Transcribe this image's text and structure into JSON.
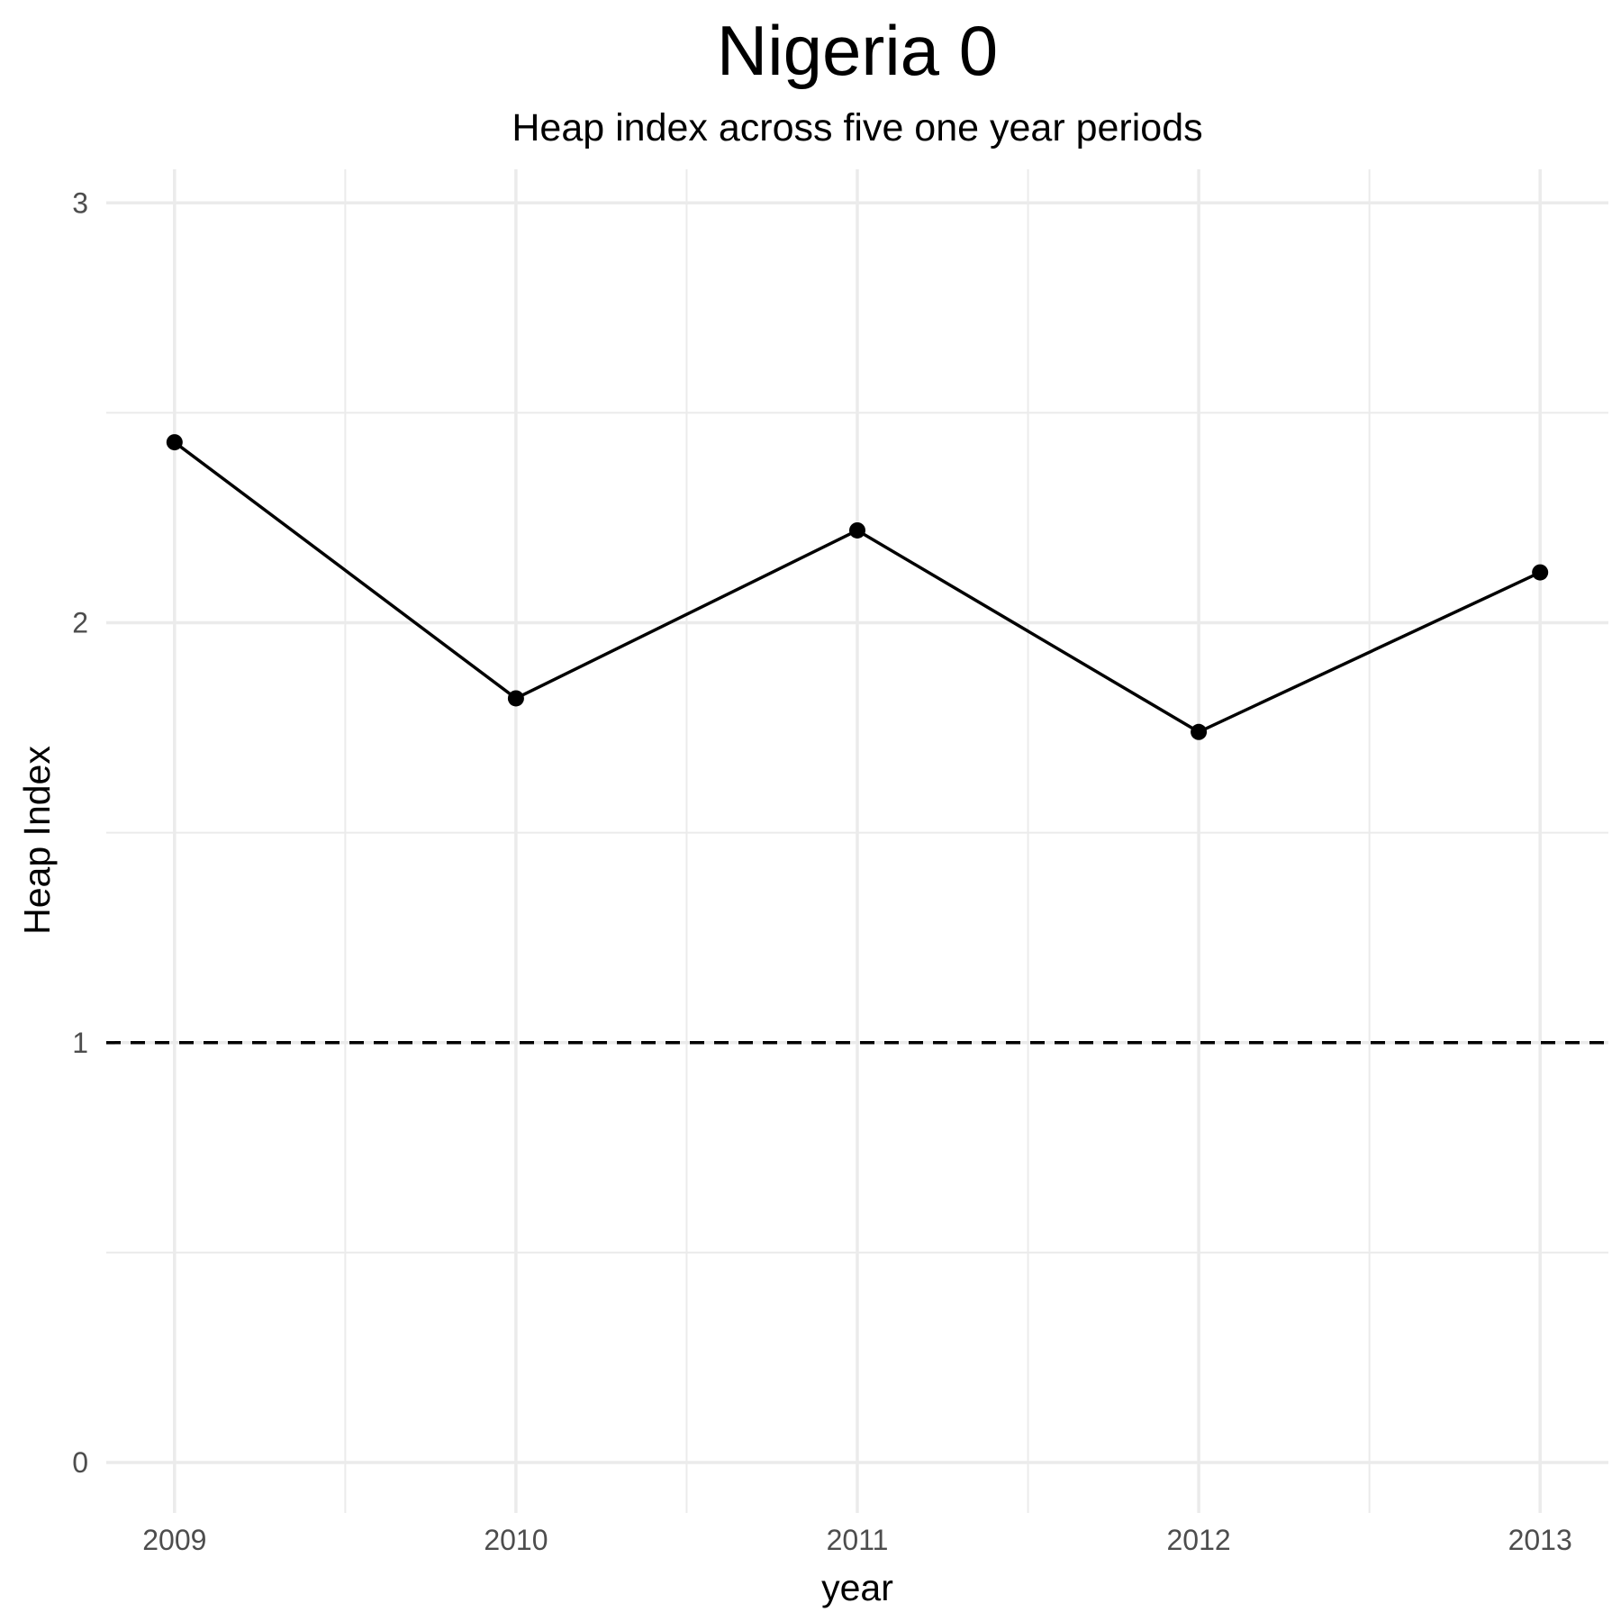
{
  "chart_data": {
    "type": "line",
    "title": "Nigeria 0",
    "subtitle": "Heap index across five one year periods",
    "xlabel": "year",
    "ylabel": "Heap Index",
    "x": [
      2009,
      2010,
      2011,
      2012,
      2013
    ],
    "x_tick_labels": [
      "2009",
      "2010",
      "2011",
      "2012",
      "2013"
    ],
    "y_ticks": [
      0,
      1,
      2,
      3
    ],
    "y_tick_labels": [
      "0",
      "1",
      "2",
      "3"
    ],
    "ylim": [
      -0.12,
      3.08
    ],
    "xlim": [
      2008.8,
      2013.2
    ],
    "series": [
      {
        "values": [
          2.43,
          1.82,
          2.22,
          1.74,
          2.12
        ],
        "color": "#000000"
      }
    ],
    "reference_line": {
      "y": 1,
      "style": "dashed",
      "color": "#000000"
    },
    "grid": true,
    "legend": "none"
  }
}
